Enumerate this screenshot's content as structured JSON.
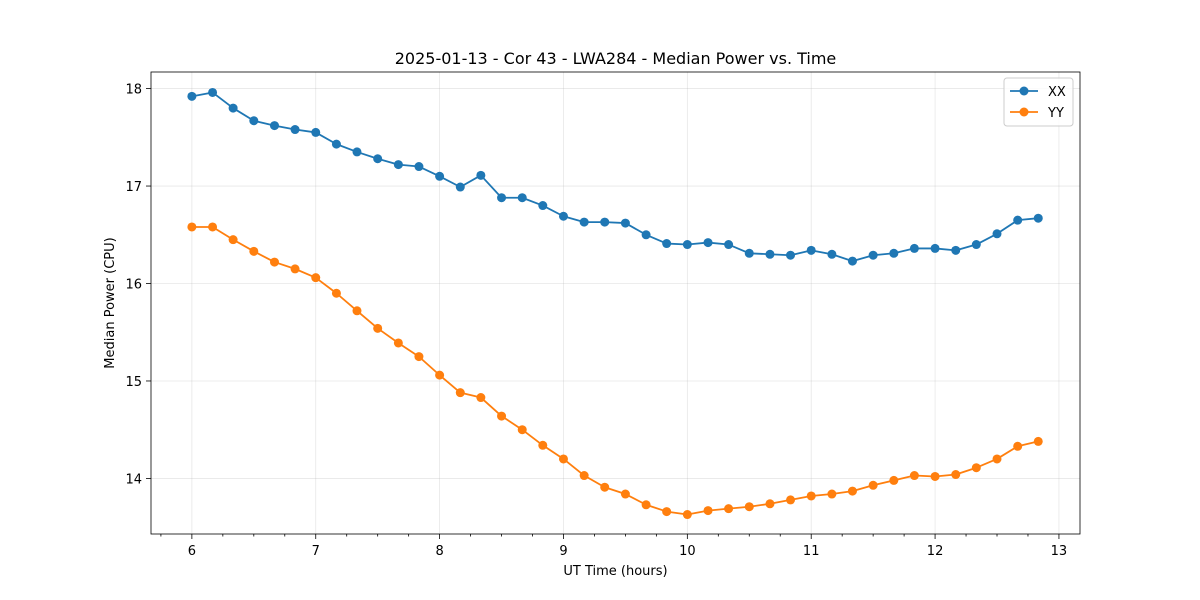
{
  "chart_data": {
    "type": "line",
    "title": "2025-01-13 - Cor 43 - LWA284 - Median Power vs. Time",
    "xlabel": "UT Time (hours)",
    "ylabel": "Median Power (CPU)",
    "xlim": [
      5.67,
      13.17
    ],
    "ylim": [
      13.43,
      18.17
    ],
    "xticks": [
      6,
      7,
      8,
      9,
      10,
      11,
      12,
      13
    ],
    "yticks": [
      14,
      15,
      16,
      17,
      18
    ],
    "grid": true,
    "legend_position": "top-right",
    "x": [
      6.0,
      6.167,
      6.333,
      6.5,
      6.667,
      6.833,
      7.0,
      7.167,
      7.333,
      7.5,
      7.667,
      7.833,
      8.0,
      8.167,
      8.333,
      8.5,
      8.667,
      8.833,
      9.0,
      9.167,
      9.333,
      9.5,
      9.667,
      9.833,
      10.0,
      10.167,
      10.333,
      10.5,
      10.667,
      10.833,
      11.0,
      11.167,
      11.333,
      11.5,
      11.667,
      11.833,
      12.0,
      12.167,
      12.333,
      12.5,
      12.667,
      12.833
    ],
    "series": [
      {
        "name": "XX",
        "color": "#1f77b4",
        "values": [
          17.92,
          17.96,
          17.8,
          17.67,
          17.62,
          17.58,
          17.55,
          17.43,
          17.35,
          17.28,
          17.22,
          17.2,
          17.1,
          16.99,
          17.11,
          16.88,
          16.88,
          16.8,
          16.69,
          16.63,
          16.63,
          16.62,
          16.5,
          16.41,
          16.4,
          16.42,
          16.4,
          16.31,
          16.3,
          16.29,
          16.34,
          16.3,
          16.23,
          16.29,
          16.31,
          16.36,
          16.36,
          16.34,
          16.4,
          16.51,
          16.65,
          16.67
        ]
      },
      {
        "name": "YY",
        "color": "#ff7f0e",
        "values": [
          16.58,
          16.58,
          16.45,
          16.33,
          16.22,
          16.15,
          16.06,
          15.9,
          15.72,
          15.54,
          15.39,
          15.25,
          15.06,
          14.88,
          14.83,
          14.64,
          14.5,
          14.34,
          14.2,
          14.03,
          13.91,
          13.84,
          13.73,
          13.66,
          13.63,
          13.67,
          13.69,
          13.71,
          13.74,
          13.78,
          13.82,
          13.84,
          13.87,
          13.93,
          13.98,
          14.03,
          14.02,
          14.04,
          14.11,
          14.2,
          14.33,
          14.38
        ]
      }
    ]
  }
}
